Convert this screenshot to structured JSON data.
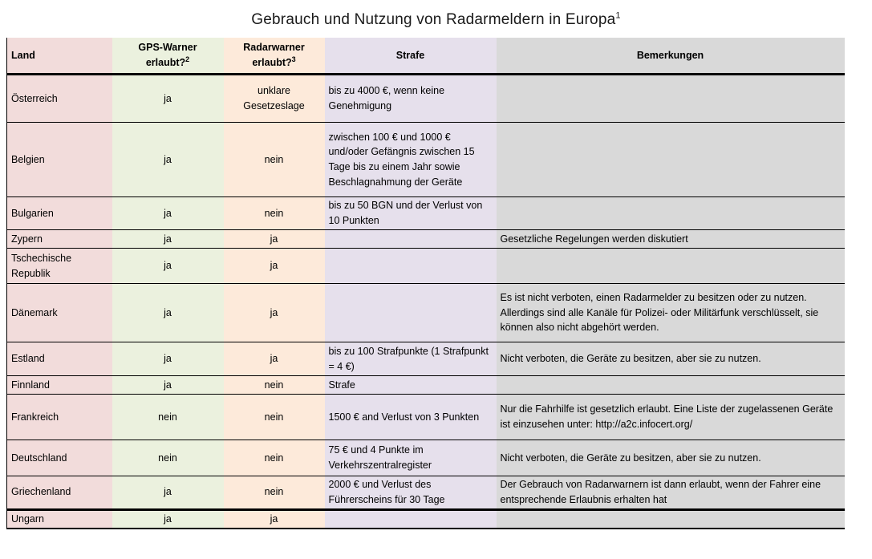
{
  "title": {
    "text": "Gebrauch und Nutzung von Radarmeldern in Europa",
    "footnote_mark": "1"
  },
  "colors": {
    "col_land_bg": "#f2dcdb",
    "col_gps_bg": "#ebf1de",
    "col_radar_bg": "#fdeada",
    "col_strafe_bg": "#e6e0ec",
    "col_bemerkungen_bg": "#d9d9d9",
    "border": "#000000"
  },
  "table": {
    "columns": [
      {
        "key": "land",
        "label": "Land",
        "label2": "",
        "sup": ""
      },
      {
        "key": "gps",
        "label": "GPS-Warner",
        "label2": "erlaubt?",
        "sup": "2"
      },
      {
        "key": "radar",
        "label": "Radarwarner",
        "label2": "erlaubt?",
        "sup": "3"
      },
      {
        "key": "strafe",
        "label": "Strafe",
        "label2": "",
        "sup": ""
      },
      {
        "key": "bemerkungen",
        "label": "Bemerkungen",
        "label2": "",
        "sup": ""
      }
    ],
    "rows": [
      {
        "land": "Österreich",
        "gps": "ja",
        "radar": "unklare Gesetzeslage",
        "strafe": "bis zu 4000 €, wenn keine Genehmigung",
        "bemerkungen": ""
      },
      {
        "land": "Belgien",
        "gps": "ja",
        "radar": "nein",
        "strafe": "zwischen 100 € und 1000 € und/oder Gefängnis zwischen 15 Tage  bis zu einem Jahr sowie Beschlagnahmung der Geräte",
        "bemerkungen": ""
      },
      {
        "land": "Bulgarien",
        "gps": "ja",
        "radar": "nein",
        "strafe": "bis zu 50 BGN und der Verlust von 10 Punkten",
        "bemerkungen": ""
      },
      {
        "land": "Zypern",
        "gps": "ja",
        "radar": "ja",
        "strafe": "",
        "bemerkungen": "Gesetzliche Regelungen werden diskutiert"
      },
      {
        "land": "Tschechische Republik",
        "gps": "ja",
        "radar": "ja",
        "strafe": "",
        "bemerkungen": ""
      },
      {
        "land": "Dänemark",
        "gps": "ja",
        "radar": "ja",
        "strafe": "",
        "bemerkungen": "Es ist nicht verboten, einen Radarmelder zu besitzen oder zu nutzen. Allerdings sind alle Kanäle für Polizei- oder Militärfunk  verschlüsselt, sie können also nicht abgehört werden."
      },
      {
        "land": "Estland",
        "gps": "ja",
        "radar": "ja",
        "strafe": "bis zu 100 Strafpunkte (1 Strafpunkt = 4 €)",
        "bemerkungen": "Nicht verboten, die Geräte zu besitzen, aber sie zu nutzen."
      },
      {
        "land": "Finnland",
        "gps": "ja",
        "radar": "nein",
        "strafe": "Strafe",
        "bemerkungen": ""
      },
      {
        "land": "Frankreich",
        "gps": "nein",
        "radar": "nein",
        "strafe": "1500 € and Verlust von 3 Punkten",
        "bemerkungen": "Nur die Fahrhilfe ist gesetzlich erlaubt. Eine Liste der zugelassenen Geräte ist einzusehen unter: http://a2c.infocert.org/"
      },
      {
        "land": "Deutschland",
        "gps": "nein",
        "radar": "nein",
        "strafe": "75 € und 4 Punkte im Verkehrszentralregister",
        "bemerkungen": "Nicht verboten, die Geräte zu besitzen, aber sie zu nutzen."
      },
      {
        "land": "Griechenland",
        "gps": "ja",
        "radar": "nein",
        "strafe": "2000 € und Verlust des Führerscheins für 30 Tage",
        "bemerkungen": "Der Gebrauch von Radarwarnern ist dann erlaubt, wenn der Fahrer eine entsprechende Erlaubnis erhalten hat"
      },
      {
        "land": "Ungarn",
        "gps": "ja",
        "radar": "ja",
        "strafe": "",
        "bemerkungen": ""
      }
    ]
  }
}
